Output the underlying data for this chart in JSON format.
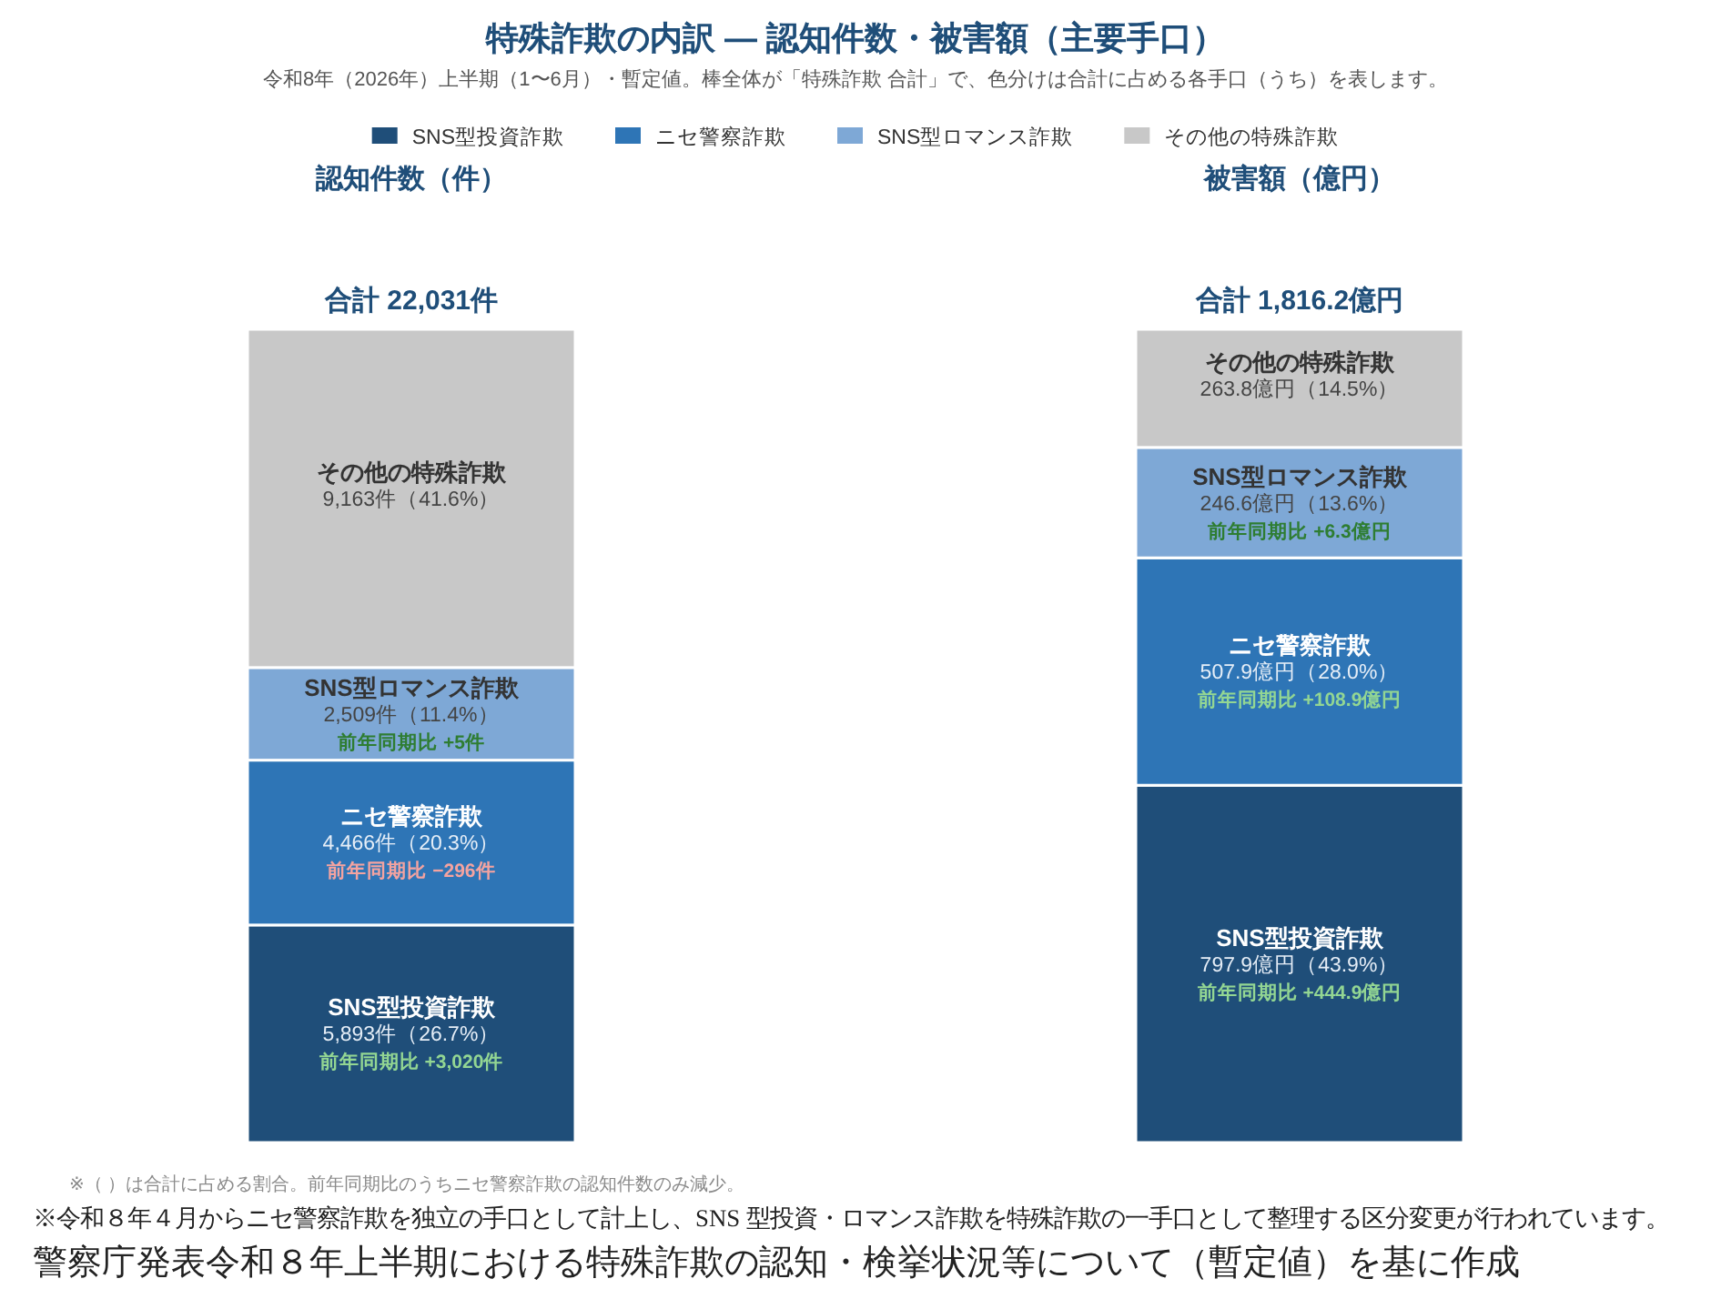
{
  "chart_data": [
    {
      "type": "bar",
      "stacked": true,
      "title": "特殊詐欺の内訳 — 認知件数・被害額（主要手口）",
      "subtitle": "令和8年（2026年）上半期（1〜6月）・暫定値。棒全体が「特殊詐欺 合計」で、色分けは合計に占める各手口（うち）を表します。",
      "ylabel": "認知件数（件）",
      "legend": "top",
      "categories": [
        null
      ],
      "ylim": [
        0,
        22031
      ],
      "totals": [
        "合計 22,031件"
      ],
      "series": [
        {
          "name": "SNS型投資詐欺",
          "color": "#1f4e79",
          "values": [
            5893
          ],
          "value_labels": [
            "5,893件（26.7%）"
          ]
        },
        {
          "name": "ニセ警察詐欺",
          "color": "#2e75b6",
          "values": [
            4466
          ],
          "value_labels": [
            "4,466件（20.3%）"
          ]
        },
        {
          "name": "SNS型ロマンス詐欺",
          "color": "#7ea8d6",
          "values": [
            2509
          ],
          "value_labels": [
            "2,509件（11.4%）"
          ]
        },
        {
          "name": "その他の特殊詐欺",
          "color": "#c8c8c8",
          "values": [
            9163
          ],
          "value_labels": [
            "9,163件（41.6%）"
          ]
        }
      ],
      "annotations": [
        "前年同期比 +3,020件",
        "前年同期比 −296件",
        "前年同期比 +5件"
      ]
    },
    {
      "type": "bar",
      "stacked": true,
      "ylabel": "被害額（億円）",
      "categories": [
        null
      ],
      "ylim": [
        0,
        1816.2
      ],
      "totals": [
        "合計 1,816.2億円"
      ],
      "series": [
        {
          "name": "SNS型投資詐欺",
          "color": "#1f4e79",
          "values": [
            797.9
          ],
          "value_labels": [
            "797.9億円（43.9%）"
          ]
        },
        {
          "name": "ニセ警察詐欺",
          "color": "#2e75b6",
          "values": [
            507.9
          ],
          "value_labels": [
            "507.9億円（28.0%）"
          ]
        },
        {
          "name": "SNS型ロマンス詐欺",
          "color": "#7ea8d6",
          "values": [
            246.6
          ],
          "value_labels": [
            "246.6億円（13.6%）"
          ]
        },
        {
          "name": "その他の特殊詐欺",
          "color": "#c8c8c8",
          "values": [
            263.8
          ],
          "value_labels": [
            "263.8億円（14.5%）"
          ]
        }
      ],
      "annotations": [
        "前年同期比 +444.9億円",
        "前年同期比 +108.9億円",
        "前年同期比 +6.3億円"
      ]
    },
    {
      "type": "other",
      "annotations": [
        "※（ ）は合計に占める割合。前年同期比のうちニセ警察詐欺の認知件数のみ減少。",
        "※令和８年４月からニセ警察詐欺を独立の手口として計上し、SNS 型投資・ロマンス詐欺を特殊詐欺の一手口として整理する区分変更が行われています。",
        "警察庁発表令和８年上半期における特殊詐欺の認知・検挙状況等について（暫定値）を基に作成"
      ]
    }
  ]
}
